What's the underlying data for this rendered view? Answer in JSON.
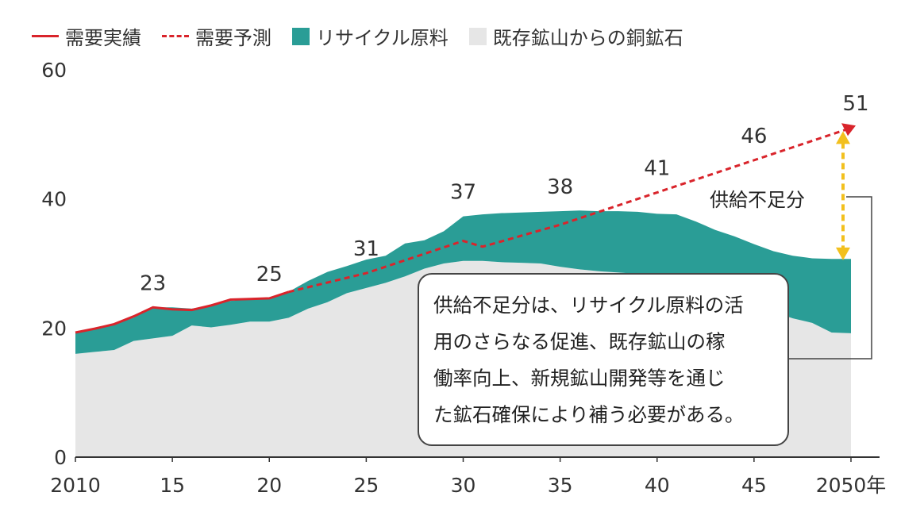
{
  "legend": {
    "demand_actual": "需要実績",
    "demand_forecast": "需要予測",
    "recycled": "リサイクル原料",
    "mine": "既存鉱山からの銅鉱石"
  },
  "colors": {
    "demand": "#d9242b",
    "recycled": "#2a9d96",
    "mine": "#e6e6e6",
    "arrow": "#f2c01e"
  },
  "chart_data": {
    "type": "area",
    "x": [
      2010,
      2011,
      2012,
      2013,
      2014,
      2015,
      2016,
      2017,
      2018,
      2019,
      2020,
      2021,
      2022,
      2023,
      2024,
      2025,
      2026,
      2027,
      2028,
      2029,
      2030,
      2031,
      2032,
      2033,
      2034,
      2035,
      2036,
      2037,
      2038,
      2039,
      2040,
      2041,
      2042,
      2043,
      2044,
      2045,
      2046,
      2047,
      2048,
      2049,
      2050
    ],
    "series": [
      {
        "name": "既存鉱山からの銅鉱石",
        "values": [
          16,
          16.3,
          16.6,
          18,
          18.4,
          18.8,
          20.4,
          20.1,
          20.5,
          21,
          21,
          21.6,
          23,
          24,
          25.4,
          26.2,
          27,
          28,
          29.2,
          30,
          30.4,
          30.4,
          30.2,
          30.1,
          30,
          29.5,
          29.1,
          28.8,
          28.6,
          28.4,
          28.3,
          28.1,
          27.8,
          27,
          25.5,
          24,
          22.5,
          21.5,
          20.8,
          19.3,
          19.2
        ]
      },
      {
        "name": "リサイクル原料",
        "values": [
          3.3,
          3.6,
          4,
          3.6,
          4.8,
          4.4,
          2.6,
          3.4,
          3.7,
          3.5,
          3.5,
          4,
          4.3,
          4.7,
          4.2,
          4.4,
          4.2,
          5.1,
          4.4,
          5,
          6.9,
          7.2,
          7.6,
          7.8,
          8,
          8.6,
          9.1,
          9.3,
          9.5,
          9.6,
          9.4,
          9.5,
          8.7,
          8.2,
          8.7,
          9,
          9.4,
          9.7,
          10,
          11.4,
          11.5
        ]
      },
      {
        "name": "需要実績",
        "x": [
          2010,
          2011,
          2012,
          2013,
          2014,
          2015,
          2016,
          2017,
          2018,
          2019,
          2020,
          2021
        ],
        "values": [
          19.3,
          19.9,
          20.6,
          21.8,
          23.2,
          22.9,
          22.8,
          23.5,
          24.4,
          24.5,
          24.6,
          25.6
        ]
      },
      {
        "name": "需要予測",
        "x": [
          2021,
          2025,
          2030,
          2031,
          2035,
          2040,
          2045,
          2050
        ],
        "values": [
          25.6,
          28.5,
          33.5,
          32.6,
          36,
          41,
          46,
          51
        ]
      }
    ],
    "data_labels": [
      {
        "x": 2014,
        "value": "23"
      },
      {
        "x": 2020,
        "value": "25"
      },
      {
        "x": 2025,
        "value": "31"
      },
      {
        "x": 2030,
        "value": "37"
      },
      {
        "x": 2035,
        "value": "38"
      },
      {
        "x": 2040,
        "value": "41"
      },
      {
        "x": 2045,
        "value": "46"
      },
      {
        "x": 2050,
        "value": "51"
      }
    ],
    "x_ticks": [
      {
        "x": 2010,
        "label": "2010"
      },
      {
        "x": 2015,
        "label": "15"
      },
      {
        "x": 2020,
        "label": "20"
      },
      {
        "x": 2025,
        "label": "25"
      },
      {
        "x": 2030,
        "label": "30"
      },
      {
        "x": 2035,
        "label": "35"
      },
      {
        "x": 2040,
        "label": "40"
      },
      {
        "x": 2045,
        "label": "45"
      },
      {
        "x": 2050,
        "label": "2050年"
      }
    ],
    "y_ticks": [
      {
        "value": 0,
        "label": "0"
      },
      {
        "value": 20,
        "label": "20"
      },
      {
        "value": 40,
        "label": "40"
      },
      {
        "value": 60,
        "label": "60"
      }
    ],
    "xlim": [
      2010,
      2050
    ],
    "ylim": [
      0,
      60
    ],
    "shortage_arrow": {
      "x": 2050,
      "from": 31,
      "to": 50
    }
  },
  "annotations": {
    "shortage_label": "供給不足分",
    "callout_lines": [
      "供給不足分は、リサイクル原料の活",
      "用のさらなる促進、既存鉱山の稼",
      "働率向上、新規鉱山開発等を通じ",
      "た鉱石確保により補う必要がある。"
    ]
  }
}
